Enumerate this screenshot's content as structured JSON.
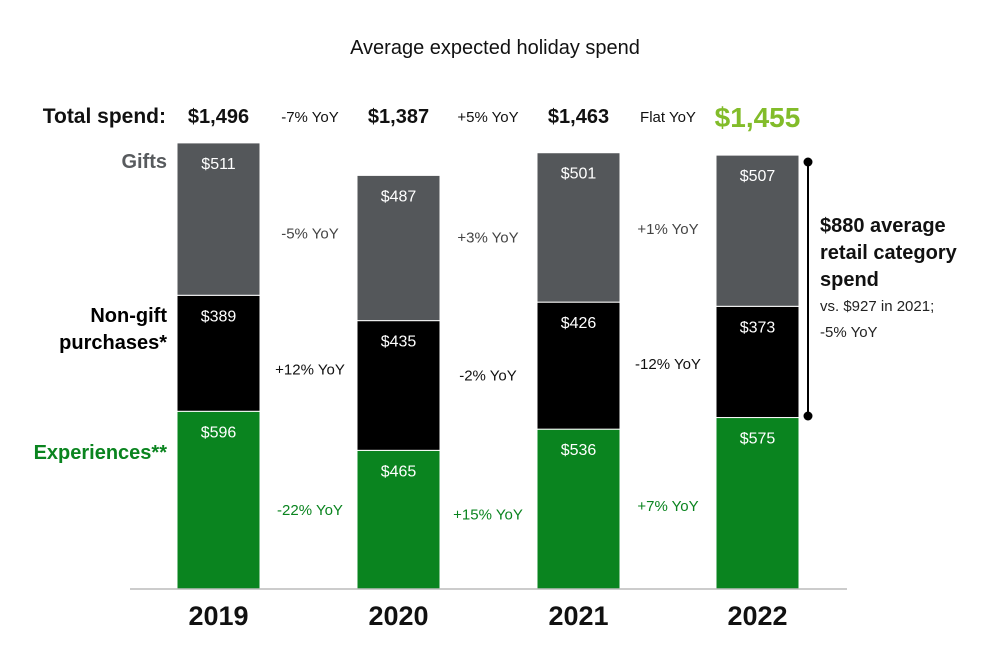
{
  "title": "Average expected holiday spend",
  "total_label": "Total spend:",
  "colors": {
    "Gifts": "#54575a",
    "Non-gift purchases*": "#000000",
    "Experiences**": "#0a841f",
    "total_highlight": "#82bc2a",
    "gifts_label": "#585b5e",
    "experiences_label": "#0a841f",
    "yoy_gray": "#444444"
  },
  "chart_data": {
    "type": "bar",
    "stacked": true,
    "categories": [
      "2019",
      "2020",
      "2021",
      "2022"
    ],
    "series": [
      {
        "name": "Experiences**",
        "values": [
          596,
          465,
          536,
          575
        ]
      },
      {
        "name": "Non-gift purchases*",
        "values": [
          389,
          435,
          426,
          373
        ]
      },
      {
        "name": "Gifts",
        "values": [
          511,
          487,
          501,
          507
        ]
      }
    ],
    "totals": [
      "$1,496",
      "$1,387",
      "$1,463",
      "$1,455"
    ],
    "value_labels": {
      "Experiences**": [
        "$596",
        "$465",
        "$536",
        "$575"
      ],
      "Non-gift purchases*": [
        "$389",
        "$435",
        "$426",
        "$373"
      ],
      "Gifts": [
        "$511",
        "$487",
        "$501",
        "$507"
      ]
    },
    "total_yoy": [
      "-7% YoY",
      "+5% YoY",
      "Flat YoY"
    ],
    "series_yoy": {
      "Gifts": [
        "-5% YoY",
        "+3% YoY",
        "+1% YoY"
      ],
      "Non-gift purchases*": [
        "+12% YoY",
        "-2% YoY",
        "-12% YoY"
      ],
      "Experiences**": [
        "-22% YoY",
        "+15% YoY",
        "+7% YoY"
      ]
    },
    "highlight_category": "2022",
    "ylim": [
      0,
      1496
    ],
    "grid": false,
    "annotation": {
      "bold_lines": [
        "$880 average",
        "retail category",
        "spend"
      ],
      "lines": [
        "vs. $927 in 2021;",
        "-5% YoY"
      ]
    }
  }
}
